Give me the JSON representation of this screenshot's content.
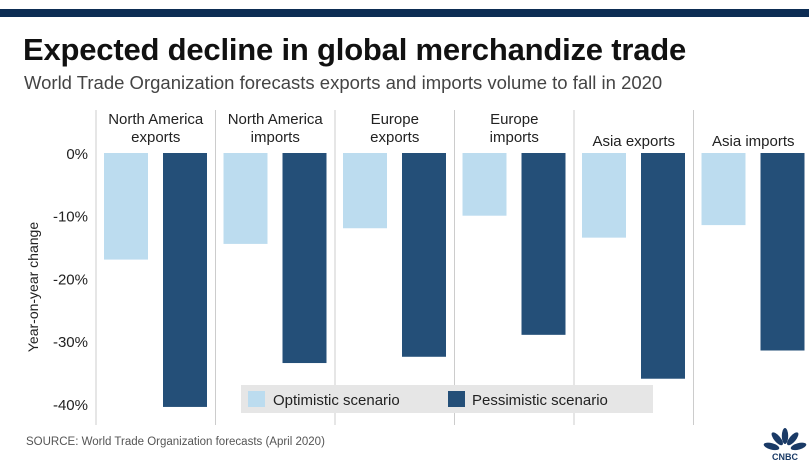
{
  "header": {
    "title": "Expected decline in global merchandize trade",
    "subtitle": "World Trade Organization forecasts exports and imports volume to fall in 2020"
  },
  "footer": {
    "source": "SOURCE: World Trade Organization forecasts (April 2020)",
    "logo_text": "CNBC"
  },
  "colors": {
    "optimistic": "#bcdcef",
    "pessimistic": "#244f78",
    "header_bar": "#0d2d54",
    "grid": "#cccccc",
    "legend_bg": "#e6e6e6"
  },
  "chart_data": {
    "type": "bar",
    "categories": [
      [
        "North America",
        "exports"
      ],
      [
        "North America",
        "imports"
      ],
      [
        "Europe",
        "exports"
      ],
      [
        "Europe",
        "imports"
      ],
      [
        "",
        "Asia exports"
      ],
      [
        "",
        "Asia imports"
      ]
    ],
    "series": [
      {
        "name": "Optimistic scenario",
        "values": [
          -17,
          -14.5,
          -12,
          -10,
          -13.5,
          -11.5
        ]
      },
      {
        "name": "Pessimistic scenario",
        "values": [
          -40.5,
          -33.5,
          -32.5,
          -29,
          -36,
          -31.5
        ]
      }
    ],
    "ylabel": "Year-on-year change",
    "yticks": [
      0,
      -10,
      -20,
      -30,
      -40
    ],
    "ytick_labels": [
      "0%",
      "-10%",
      "-20%",
      "-30%",
      "-40%"
    ],
    "ylim": [
      -42,
      0
    ],
    "legend_position": "bottom-center",
    "grid": false
  }
}
